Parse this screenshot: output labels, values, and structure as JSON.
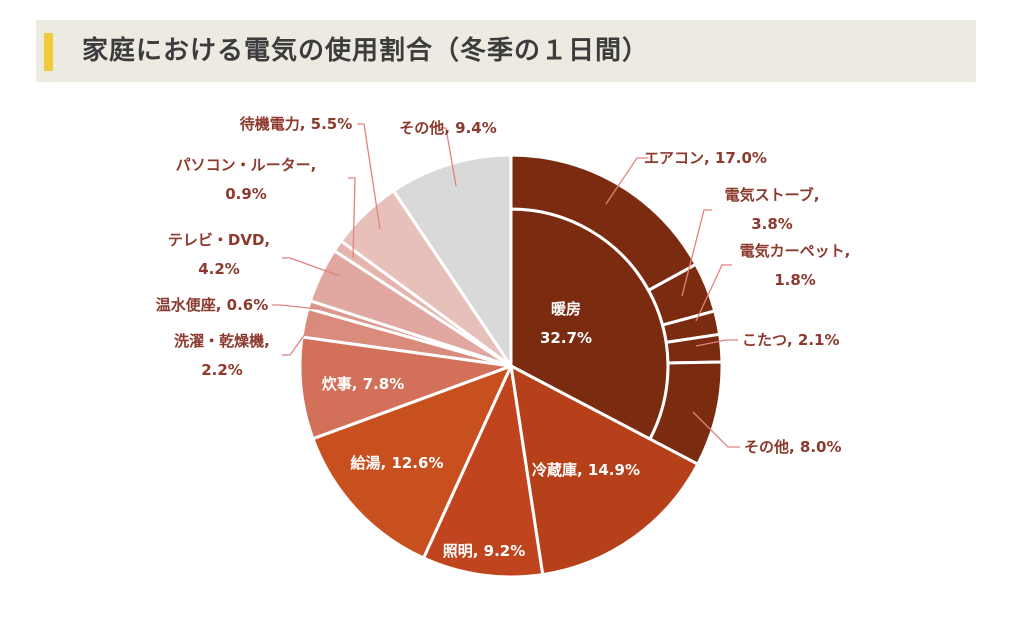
{
  "title": "家庭における電気の使用割合（冬季の１日間）",
  "colors": {
    "accent": "#f0cb3a",
    "title_bg": "#edeae1",
    "label_text": "#8b3a2e",
    "leader_line": "#e0837f"
  },
  "chart_data": {
    "type": "pie",
    "title": "家庭における電気の使用割合（冬季の１日間）",
    "slices": [
      {
        "label": "暖房",
        "value": 32.7,
        "color": "#7b2b10",
        "children": [
          {
            "label": "エアコン",
            "value": 17.0
          },
          {
            "label": "電気ストーブ",
            "value": 3.8
          },
          {
            "label": "電気カーペット",
            "value": 1.8
          },
          {
            "label": "こたつ",
            "value": 2.1
          },
          {
            "label": "その他",
            "value": 8.0
          }
        ]
      },
      {
        "label": "冷蔵庫",
        "value": 14.9,
        "color": "#b5401a"
      },
      {
        "label": "照明",
        "value": 9.2,
        "color": "#c0451e"
      },
      {
        "label": "給湯",
        "value": 12.6,
        "color": "#c8501f"
      },
      {
        "label": "炊事",
        "value": 7.8,
        "color": "#d2705a"
      },
      {
        "label": "洗濯・乾燥機",
        "value": 2.2,
        "color": "#d98c7c"
      },
      {
        "label": "温水便座",
        "value": 0.6,
        "color": "#dc978c"
      },
      {
        "label": "テレビ・DVD",
        "value": 4.2,
        "color": "#e0a8a0"
      },
      {
        "label": "パソコン・ルーター",
        "value": 0.9,
        "color": "#e4b4ad"
      },
      {
        "label": "待機電力",
        "value": 5.5,
        "color": "#e8c0ba"
      },
      {
        "label": "その他",
        "value": 9.4,
        "color": "#d9d9d9"
      }
    ],
    "labels": [
      {
        "lines": [
          "エアコン, 17.0%"
        ]
      },
      {
        "lines": [
          "電気ストーブ,",
          "3.8%"
        ]
      },
      {
        "lines": [
          "電気カーペット,",
          "1.8%"
        ]
      },
      {
        "lines": [
          "こたつ, 2.1%"
        ]
      },
      {
        "lines": [
          "その他, 8.0%"
        ]
      },
      {
        "lines": [
          "暖房",
          "32.7%"
        ]
      },
      {
        "lines": [
          "冷蔵庫, 14.9%"
        ]
      },
      {
        "lines": [
          "照明, 9.2%"
        ]
      },
      {
        "lines": [
          "給湯, 12.6%"
        ]
      },
      {
        "lines": [
          "炊事, 7.8%"
        ]
      },
      {
        "lines": [
          "洗濯・乾燥機,",
          "2.2%"
        ]
      },
      {
        "lines": [
          "温水便座, 0.6%"
        ]
      },
      {
        "lines": [
          "テレビ・DVD,",
          "4.2%"
        ]
      },
      {
        "lines": [
          "パソコン・ルーター,",
          "0.9%"
        ]
      },
      {
        "lines": [
          "待機電力, 5.5%"
        ]
      },
      {
        "lines": [
          "その他, 9.4%"
        ]
      }
    ]
  }
}
